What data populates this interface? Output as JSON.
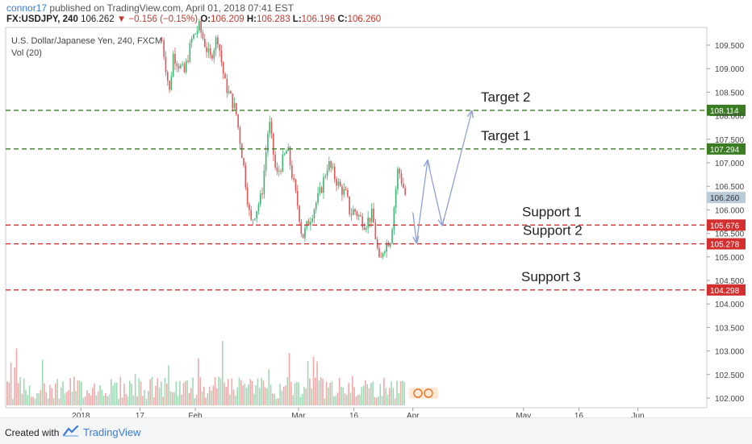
{
  "header": {
    "author": "connor17",
    "published_text": "published on TradingView.com, April 01, 2018 07:41 EST",
    "symbol": "FX:USDJPY, 240",
    "last": "106.262",
    "change": "−0.156 (−0.15%)",
    "o_label": "O:",
    "o_value": "106.209",
    "h_label": "H:",
    "h_value": "106.283",
    "l_label": "L:",
    "l_value": "106.196",
    "c_label": "C:",
    "c_value": "106.260"
  },
  "legend": {
    "instrument": "U.S. Dollar/Japanese Yen, 240, FXCM",
    "volume": "Vol (20)"
  },
  "footer": {
    "created_with": "Created with",
    "brand": "TradingView"
  },
  "colors": {
    "up": "#3cb371",
    "down": "#e05555",
    "target_line": "#3b7d23",
    "support_line": "#d32f2f",
    "projection": "#8fa0d8",
    "last_price_tag": "#b9cbd8"
  },
  "chart_data": {
    "type": "candlestick",
    "title": "U.S. Dollar/Japanese Yen, 240, FXCM",
    "y_axis": {
      "side": "right",
      "ylim": [
        101.8,
        110.1
      ],
      "ticks": [
        "109.500",
        "109.000",
        "108.500",
        "108.000",
        "107.500",
        "107.000",
        "106.500",
        "106.000",
        "105.500",
        "105.000",
        "104.500",
        "104.000",
        "103.500",
        "103.000",
        "102.500",
        "102.000"
      ]
    },
    "x_axis": {
      "labels": [
        "2018",
        "17",
        "Feb",
        "Mar",
        "16",
        "Apr",
        "May",
        "16",
        "Jun"
      ]
    },
    "levels": [
      {
        "label": "Target 2",
        "value": 108.114,
        "tag": "108.114",
        "kind": "target"
      },
      {
        "label": "Target 1",
        "value": 107.294,
        "tag": "107.294",
        "kind": "target"
      },
      {
        "label": "Support 1",
        "value": 105.676,
        "tag": "105.676",
        "kind": "support"
      },
      {
        "label": "Support 2",
        "value": 105.278,
        "tag": "105.278",
        "kind": "support"
      },
      {
        "label": "Support 3",
        "value": 104.298,
        "tag": "104.298",
        "kind": "support"
      }
    ],
    "last_price": {
      "value": 106.26,
      "tag": "106.260"
    },
    "projection_path": [
      {
        "date": "Apr 01",
        "price": 105.95
      },
      {
        "date": "Apr 02",
        "price": 105.3
      },
      {
        "date": "Apr 05",
        "price": 107.05
      },
      {
        "date": "Apr 09",
        "price": 105.67
      },
      {
        "date": "Apr 17",
        "price": 108.1
      }
    ],
    "price_path": [
      [
        "Jan 23",
        109.6
      ],
      [
        "Jan 25",
        108.5
      ],
      [
        "Jan 26",
        109.3
      ],
      [
        "Jan 29",
        108.9
      ],
      [
        "Jan 31",
        109.6
      ],
      [
        "Feb 02",
        109.9
      ],
      [
        "Feb 05",
        109.2
      ],
      [
        "Feb 07",
        109.7
      ],
      [
        "Feb 09",
        108.7
      ],
      [
        "Feb 12",
        108.1
      ],
      [
        "Feb 14",
        107.0
      ],
      [
        "Feb 16",
        105.7
      ],
      [
        "Feb 19",
        106.3
      ],
      [
        "Feb 21",
        107.9
      ],
      [
        "Feb 23",
        106.7
      ],
      [
        "Feb 26",
        107.3
      ],
      [
        "Feb 28",
        106.4
      ],
      [
        "Mar 01",
        106.0
      ],
      [
        "Mar 02",
        105.4
      ],
      [
        "Mar 05",
        106.0
      ],
      [
        "Mar 07",
        106.4
      ],
      [
        "Mar 09",
        107.0
      ],
      [
        "Mar 12",
        106.5
      ],
      [
        "Mar 14",
        106.3
      ],
      [
        "Mar 15",
        105.9
      ],
      [
        "Mar 16",
        106.0
      ],
      [
        "Mar 19",
        105.7
      ],
      [
        "Mar 21",
        105.9
      ],
      [
        "Mar 23",
        104.8
      ],
      [
        "Mar 24",
        105.2
      ],
      [
        "Mar 26",
        105.4
      ],
      [
        "Mar 28",
        106.9
      ],
      [
        "Mar 30",
        106.3
      ],
      [
        "Mar 30",
        106.26
      ]
    ],
    "volume_note": "Vol (20)"
  }
}
